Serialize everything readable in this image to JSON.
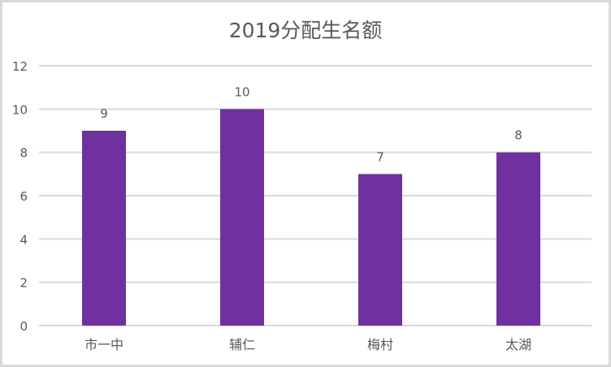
{
  "chart_data": {
    "type": "bar",
    "title": "2019分配生名额",
    "categories": [
      "市一中",
      "辅仁",
      "梅村",
      "太湖"
    ],
    "values": [
      9,
      10,
      7,
      8
    ],
    "data_labels": [
      "9",
      "10",
      "7",
      "8"
    ],
    "ylim": [
      0,
      12
    ],
    "yticks": [
      0,
      2,
      4,
      6,
      8,
      10,
      12
    ],
    "xlabel": "",
    "ylabel": "",
    "grid": true,
    "legend": "none",
    "colors": {
      "bar": "#7030a0",
      "grid": "#d9d9d9",
      "text": "#595959"
    }
  }
}
